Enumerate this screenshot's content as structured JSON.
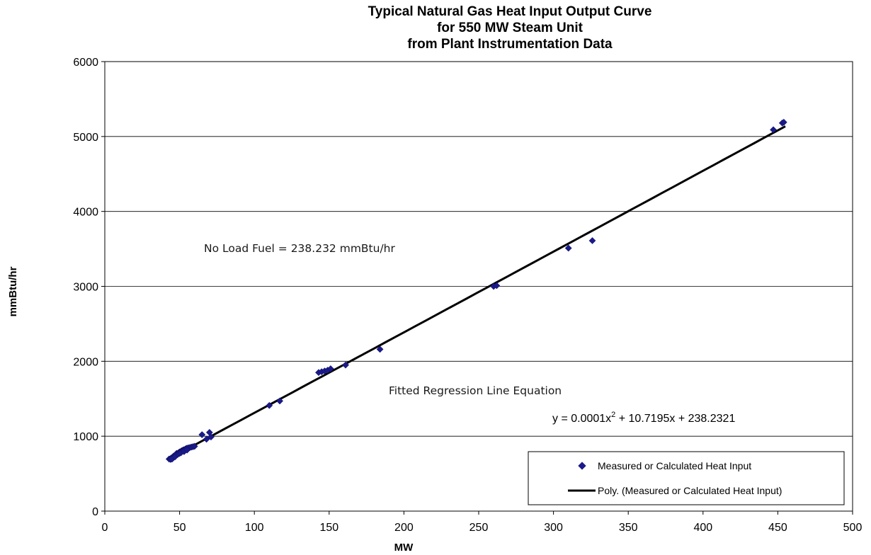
{
  "chart_data": {
    "type": "scatter",
    "title_lines": [
      "Typical Natural Gas Heat Input Output Curve",
      "for 550 MW Steam Unit",
      "from Plant Instrumentation Data"
    ],
    "xlabel": "MW",
    "ylabel": "mmBtu/hr",
    "xlim": [
      0,
      500
    ],
    "ylim": [
      0,
      6000
    ],
    "x_ticks": [
      "0",
      "50",
      "100",
      "150",
      "200",
      "250",
      "300",
      "350",
      "400",
      "450",
      "500"
    ],
    "y_ticks": [
      "0",
      "1000",
      "2000",
      "3000",
      "4000",
      "5000",
      "6000"
    ],
    "horizontal_grid": true,
    "annotations": {
      "no_load": "No Load Fuel = 238.232 mmBtu/hr",
      "fitted": "Fitted Regression Line Equation",
      "equation_prefix": "y = 0.0001x",
      "equation_sup": "2",
      "equation_suffix": " + 10.7195x + 238.2321"
    },
    "legend": {
      "position": "bottom-right",
      "marker_label": "Measured or Calculated Heat Input",
      "line_label": "Poly. (Measured or Calculated Heat Input)"
    },
    "marker_color": "#1a1a8c",
    "line_color": "#000000",
    "series": [
      {
        "name": "Measured or Calculated Heat Input",
        "type": "scatter",
        "points": [
          [
            43,
            695
          ],
          [
            44,
            700
          ],
          [
            44.5,
            710
          ],
          [
            45,
            705
          ],
          [
            45.5,
            720
          ],
          [
            46,
            715
          ],
          [
            46,
            735
          ],
          [
            46.5,
            730
          ],
          [
            47,
            745
          ],
          [
            47.5,
            740
          ],
          [
            48,
            760
          ],
          [
            48,
            770
          ],
          [
            48.5,
            755
          ],
          [
            49,
            775
          ],
          [
            49.5,
            780
          ],
          [
            50,
            790
          ],
          [
            50.5,
            785
          ],
          [
            51,
            800
          ],
          [
            51.5,
            805
          ],
          [
            52,
            810
          ],
          [
            52.5,
            815
          ],
          [
            53,
            820
          ],
          [
            54,
            830
          ],
          [
            54.5,
            835
          ],
          [
            55,
            840
          ],
          [
            56,
            845
          ],
          [
            57,
            850
          ],
          [
            58,
            855
          ],
          [
            59,
            860
          ],
          [
            60,
            865
          ],
          [
            44,
            690
          ],
          [
            45,
            695
          ],
          [
            47,
            725
          ],
          [
            49,
            760
          ],
          [
            50,
            770
          ],
          [
            51,
            780
          ],
          [
            53,
            795
          ],
          [
            55,
            815
          ],
          [
            65,
            1020
          ],
          [
            68,
            960
          ],
          [
            70,
            1050
          ],
          [
            71,
            990
          ],
          [
            110,
            1410
          ],
          [
            117,
            1470
          ],
          [
            143,
            1850
          ],
          [
            145,
            1860
          ],
          [
            147,
            1870
          ],
          [
            149,
            1880
          ],
          [
            151,
            1900
          ],
          [
            161,
            1950
          ],
          [
            184,
            2160
          ],
          [
            260,
            3000
          ],
          [
            262,
            3010
          ],
          [
            310,
            3510
          ],
          [
            326,
            3610
          ],
          [
            447,
            5090
          ],
          [
            453,
            5180
          ],
          [
            454,
            5190
          ]
        ]
      },
      {
        "name": "Poly. (Measured or Calculated Heat Input)",
        "type": "line",
        "equation": {
          "a": 0.0001,
          "b": 10.7195,
          "c": 238.2321
        },
        "x_range": [
          43,
          455
        ]
      }
    ]
  }
}
